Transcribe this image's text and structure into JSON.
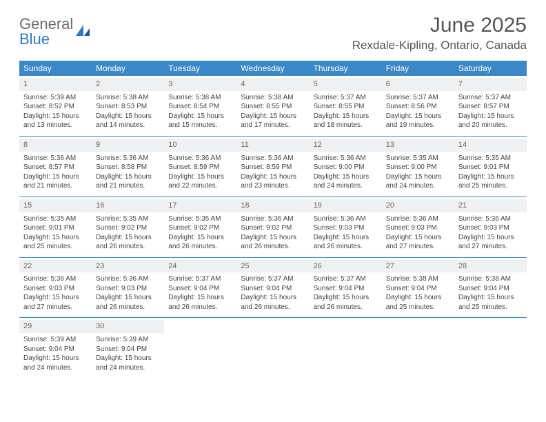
{
  "brand": {
    "line1": "General",
    "line2": "Blue"
  },
  "title": "June 2025",
  "location": "Rexdale-Kipling, Ontario, Canada",
  "colors": {
    "header_bg": "#3b87c8",
    "header_fg": "#ffffff",
    "daynum_bg": "#eef0f1",
    "border": "#3b87c8",
    "logo_gray": "#6b6b6b",
    "logo_blue": "#2f78c3"
  },
  "day_headers": [
    "Sunday",
    "Monday",
    "Tuesday",
    "Wednesday",
    "Thursday",
    "Friday",
    "Saturday"
  ],
  "weeks": [
    [
      {
        "n": "1",
        "sr": "5:39 AM",
        "ss": "8:52 PM",
        "dl": "15 hours and 13 minutes."
      },
      {
        "n": "2",
        "sr": "5:38 AM",
        "ss": "8:53 PM",
        "dl": "15 hours and 14 minutes."
      },
      {
        "n": "3",
        "sr": "5:38 AM",
        "ss": "8:54 PM",
        "dl": "15 hours and 15 minutes."
      },
      {
        "n": "4",
        "sr": "5:38 AM",
        "ss": "8:55 PM",
        "dl": "15 hours and 17 minutes."
      },
      {
        "n": "5",
        "sr": "5:37 AM",
        "ss": "8:55 PM",
        "dl": "15 hours and 18 minutes."
      },
      {
        "n": "6",
        "sr": "5:37 AM",
        "ss": "8:56 PM",
        "dl": "15 hours and 19 minutes."
      },
      {
        "n": "7",
        "sr": "5:37 AM",
        "ss": "8:57 PM",
        "dl": "15 hours and 20 minutes."
      }
    ],
    [
      {
        "n": "8",
        "sr": "5:36 AM",
        "ss": "8:57 PM",
        "dl": "15 hours and 21 minutes."
      },
      {
        "n": "9",
        "sr": "5:36 AM",
        "ss": "8:58 PM",
        "dl": "15 hours and 21 minutes."
      },
      {
        "n": "10",
        "sr": "5:36 AM",
        "ss": "8:59 PM",
        "dl": "15 hours and 22 minutes."
      },
      {
        "n": "11",
        "sr": "5:36 AM",
        "ss": "8:59 PM",
        "dl": "15 hours and 23 minutes."
      },
      {
        "n": "12",
        "sr": "5:36 AM",
        "ss": "9:00 PM",
        "dl": "15 hours and 24 minutes."
      },
      {
        "n": "13",
        "sr": "5:35 AM",
        "ss": "9:00 PM",
        "dl": "15 hours and 24 minutes."
      },
      {
        "n": "14",
        "sr": "5:35 AM",
        "ss": "9:01 PM",
        "dl": "15 hours and 25 minutes."
      }
    ],
    [
      {
        "n": "15",
        "sr": "5:35 AM",
        "ss": "9:01 PM",
        "dl": "15 hours and 25 minutes."
      },
      {
        "n": "16",
        "sr": "5:35 AM",
        "ss": "9:02 PM",
        "dl": "15 hours and 26 minutes."
      },
      {
        "n": "17",
        "sr": "5:35 AM",
        "ss": "9:02 PM",
        "dl": "15 hours and 26 minutes."
      },
      {
        "n": "18",
        "sr": "5:36 AM",
        "ss": "9:02 PM",
        "dl": "15 hours and 26 minutes."
      },
      {
        "n": "19",
        "sr": "5:36 AM",
        "ss": "9:03 PM",
        "dl": "15 hours and 26 minutes."
      },
      {
        "n": "20",
        "sr": "5:36 AM",
        "ss": "9:03 PM",
        "dl": "15 hours and 27 minutes."
      },
      {
        "n": "21",
        "sr": "5:36 AM",
        "ss": "9:03 PM",
        "dl": "15 hours and 27 minutes."
      }
    ],
    [
      {
        "n": "22",
        "sr": "5:36 AM",
        "ss": "9:03 PM",
        "dl": "15 hours and 27 minutes."
      },
      {
        "n": "23",
        "sr": "5:36 AM",
        "ss": "9:03 PM",
        "dl": "15 hours and 26 minutes."
      },
      {
        "n": "24",
        "sr": "5:37 AM",
        "ss": "9:04 PM",
        "dl": "15 hours and 26 minutes."
      },
      {
        "n": "25",
        "sr": "5:37 AM",
        "ss": "9:04 PM",
        "dl": "15 hours and 26 minutes."
      },
      {
        "n": "26",
        "sr": "5:37 AM",
        "ss": "9:04 PM",
        "dl": "15 hours and 26 minutes."
      },
      {
        "n": "27",
        "sr": "5:38 AM",
        "ss": "9:04 PM",
        "dl": "15 hours and 25 minutes."
      },
      {
        "n": "28",
        "sr": "5:38 AM",
        "ss": "9:04 PM",
        "dl": "15 hours and 25 minutes."
      }
    ],
    [
      {
        "n": "29",
        "sr": "5:39 AM",
        "ss": "9:04 PM",
        "dl": "15 hours and 24 minutes."
      },
      {
        "n": "30",
        "sr": "5:39 AM",
        "ss": "9:04 PM",
        "dl": "15 hours and 24 minutes."
      },
      null,
      null,
      null,
      null,
      null
    ]
  ],
  "labels": {
    "sunrise": "Sunrise:",
    "sunset": "Sunset:",
    "daylight": "Daylight:"
  }
}
